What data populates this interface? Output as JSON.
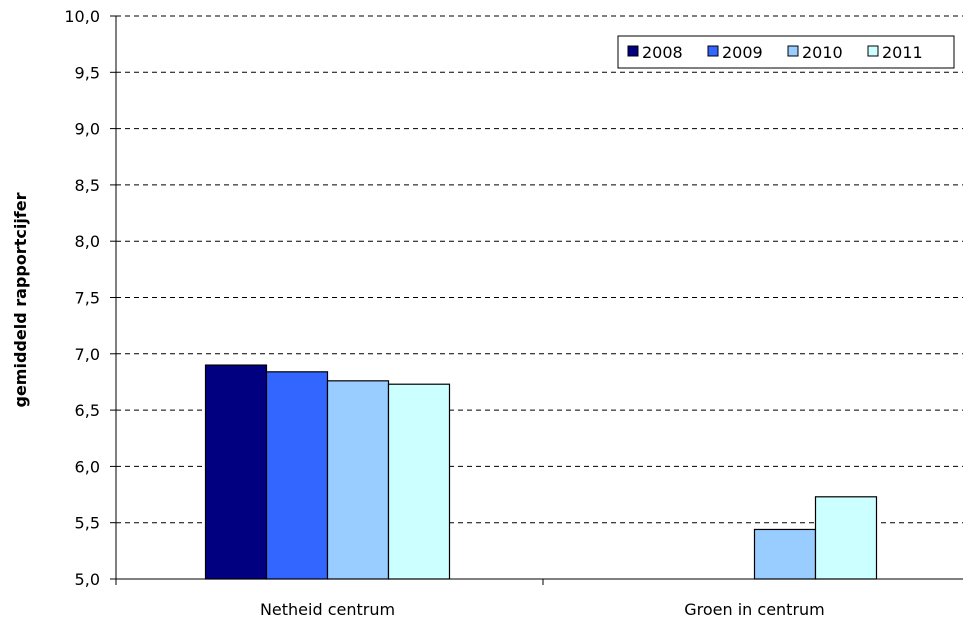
{
  "chart_data": {
    "type": "bar",
    "title": "",
    "xlabel": "",
    "ylabel": "gemiddeld rapportcijfer",
    "ylim": [
      5.0,
      10.0
    ],
    "ytick_step": 0.5,
    "ytick_labels": [
      "5,0",
      "5,5",
      "6,0",
      "6,5",
      "7,0",
      "7,5",
      "8,0",
      "8,5",
      "9,0",
      "9,5",
      "10,0"
    ],
    "grid": true,
    "legend_position": "top-right",
    "categories": [
      "Netheid centrum",
      "Groen in centrum"
    ],
    "series": [
      {
        "name": "2008",
        "color": "#000080",
        "values": [
          6.9,
          null
        ]
      },
      {
        "name": "2009",
        "color": "#3366FF",
        "values": [
          6.84,
          null
        ]
      },
      {
        "name": "2010",
        "color": "#99CCFF",
        "values": [
          6.76,
          5.44
        ]
      },
      {
        "name": "2011",
        "color": "#CCFFFF",
        "values": [
          6.73,
          5.73
        ]
      }
    ]
  }
}
